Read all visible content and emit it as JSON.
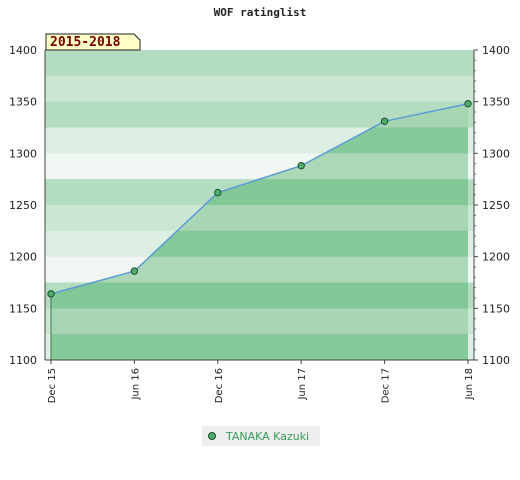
{
  "chart_data": {
    "type": "area",
    "title": "WOF ratinglist",
    "period_label": "2015-2018",
    "xlabel": "",
    "ylabel": "",
    "x": [
      "Dec 15",
      "Jun 16",
      "Dec 16",
      "Jun 17",
      "Dec 17",
      "Jun 18"
    ],
    "series": [
      {
        "name": "TANAKA Kazuki",
        "values": [
          1164,
          1186,
          1262,
          1288,
          1331,
          1348
        ]
      }
    ],
    "ylim": [
      1100,
      1400
    ],
    "yticks": [
      1100,
      1150,
      1200,
      1250,
      1300,
      1350,
      1400
    ],
    "grid": true,
    "legend_position": "bottom-center",
    "colors": {
      "line": "#5b9bd5",
      "marker_fill": "#4caf6a",
      "marker_stroke": "#1f4f2f",
      "area_dark": "#7cc492",
      "area_light": "#a4d4b0",
      "band_colors": [
        "#b3dcc0",
        "#cbe7d3",
        "#ddeee2",
        "#f0f7f2"
      ],
      "badge_fill": "#ffffc8"
    }
  }
}
